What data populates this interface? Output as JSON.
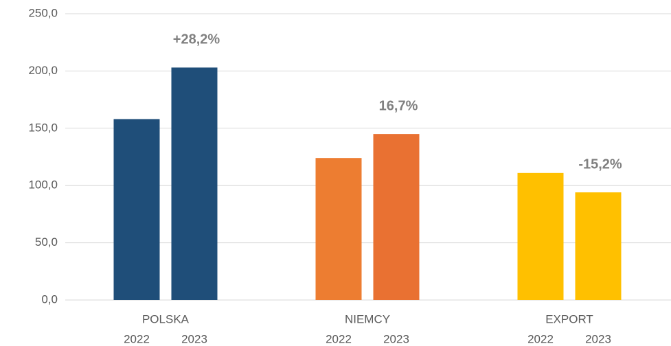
{
  "chart_data": {
    "type": "bar",
    "categories": [
      "POLSKA",
      "NIEMCY",
      "EXPORT"
    ],
    "series": [
      {
        "name": "2022",
        "colors": [
          "#1f4e79",
          "#ed7d31",
          "#ffc000"
        ],
        "values": [
          158,
          124,
          111
        ]
      },
      {
        "name": "2023",
        "colors": [
          "#1f4e79",
          "#e97132",
          "#ffc000"
        ],
        "values": [
          203,
          145,
          94
        ]
      }
    ],
    "annotations": [
      "+28,2%",
      "16,7%",
      "-15,2%"
    ],
    "ylim": [
      0,
      250
    ],
    "yticks": [
      {
        "value": 0,
        "label": "0,0"
      },
      {
        "value": 50,
        "label": "50,0"
      },
      {
        "value": 100,
        "label": "100,0"
      },
      {
        "value": 150,
        "label": "150,0"
      },
      {
        "value": 200,
        "label": "200,0"
      },
      {
        "value": 250,
        "label": "250,0"
      }
    ],
    "grid": true
  }
}
